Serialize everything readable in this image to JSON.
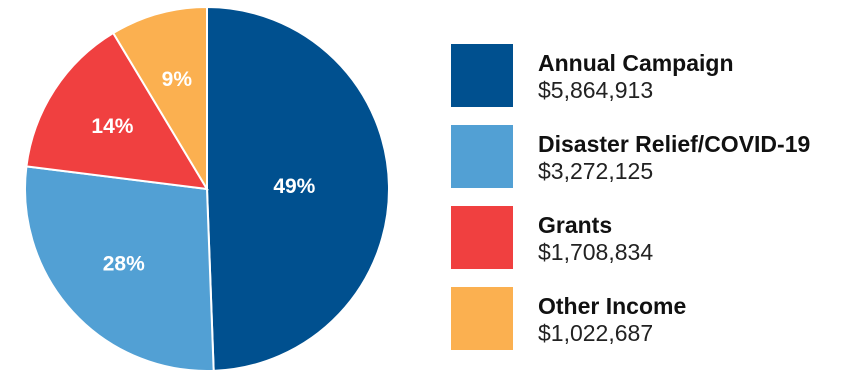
{
  "chart_data": {
    "type": "pie",
    "title": "",
    "slices": [
      {
        "label": "Annual Campaign",
        "value": 5864913,
        "amount_text": "$5,864,913",
        "percent_text": "49%",
        "color": "#00508f"
      },
      {
        "label": "Disaster Relief/COVID-19",
        "value": 3272125,
        "amount_text": "$3,272,125",
        "percent_text": "28%",
        "color": "#52a0d4"
      },
      {
        "label": "Grants",
        "value": 1708834,
        "amount_text": "$1,708,834",
        "percent_text": "14%",
        "color": "#f04040"
      },
      {
        "label": "Other Income",
        "value": 1022687,
        "amount_text": "$1,022,687",
        "percent_text": "9%",
        "color": "#fbb050"
      }
    ],
    "legend_position": "right"
  }
}
